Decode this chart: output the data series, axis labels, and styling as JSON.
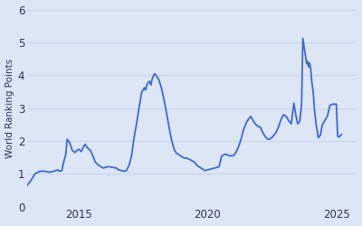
{
  "ylabel": "World Ranking Points",
  "background_color": "#dce6f5",
  "line_color": "#4169cc",
  "xlim": [
    2013.0,
    2025.8
  ],
  "ylim": [
    0,
    6
  ],
  "yticks": [
    0,
    1,
    2,
    3,
    4,
    5,
    6
  ],
  "xticks": [
    2015,
    2020,
    2025
  ],
  "grid_color": "#c8d4e8",
  "line_width": 1.3,
  "series": [
    [
      2013.0,
      0.65
    ],
    [
      2013.15,
      0.8
    ],
    [
      2013.3,
      1.0
    ],
    [
      2013.5,
      1.08
    ],
    [
      2013.7,
      1.08
    ],
    [
      2013.85,
      1.05
    ],
    [
      2014.0,
      1.07
    ],
    [
      2014.1,
      1.1
    ],
    [
      2014.2,
      1.12
    ],
    [
      2014.25,
      1.08
    ],
    [
      2014.35,
      1.1
    ],
    [
      2014.4,
      1.3
    ],
    [
      2014.5,
      1.6
    ],
    [
      2014.55,
      2.05
    ],
    [
      2014.65,
      1.95
    ],
    [
      2014.75,
      1.72
    ],
    [
      2014.85,
      1.65
    ],
    [
      2014.95,
      1.72
    ],
    [
      2015.0,
      1.75
    ],
    [
      2015.1,
      1.68
    ],
    [
      2015.2,
      1.85
    ],
    [
      2015.25,
      1.9
    ],
    [
      2015.35,
      1.78
    ],
    [
      2015.45,
      1.72
    ],
    [
      2015.55,
      1.55
    ],
    [
      2015.65,
      1.35
    ],
    [
      2015.75,
      1.28
    ],
    [
      2015.85,
      1.22
    ],
    [
      2015.95,
      1.18
    ],
    [
      2016.05,
      1.2
    ],
    [
      2016.15,
      1.22
    ],
    [
      2016.3,
      1.2
    ],
    [
      2016.45,
      1.18
    ],
    [
      2016.55,
      1.12
    ],
    [
      2016.65,
      1.1
    ],
    [
      2016.75,
      1.08
    ],
    [
      2016.85,
      1.1
    ],
    [
      2016.95,
      1.25
    ],
    [
      2017.05,
      1.55
    ],
    [
      2017.15,
      2.1
    ],
    [
      2017.25,
      2.55
    ],
    [
      2017.35,
      3.05
    ],
    [
      2017.45,
      3.5
    ],
    [
      2017.5,
      3.55
    ],
    [
      2017.55,
      3.62
    ],
    [
      2017.6,
      3.55
    ],
    [
      2017.65,
      3.72
    ],
    [
      2017.7,
      3.78
    ],
    [
      2017.75,
      3.82
    ],
    [
      2017.8,
      3.7
    ],
    [
      2017.85,
      3.88
    ],
    [
      2017.9,
      3.98
    ],
    [
      2017.95,
      4.05
    ],
    [
      2018.0,
      4.0
    ],
    [
      2018.1,
      3.88
    ],
    [
      2018.2,
      3.65
    ],
    [
      2018.3,
      3.3
    ],
    [
      2018.4,
      2.9
    ],
    [
      2018.5,
      2.45
    ],
    [
      2018.6,
      2.05
    ],
    [
      2018.7,
      1.75
    ],
    [
      2018.8,
      1.62
    ],
    [
      2018.9,
      1.58
    ],
    [
      2019.0,
      1.52
    ],
    [
      2019.1,
      1.48
    ],
    [
      2019.2,
      1.48
    ],
    [
      2019.3,
      1.44
    ],
    [
      2019.4,
      1.4
    ],
    [
      2019.5,
      1.35
    ],
    [
      2019.6,
      1.25
    ],
    [
      2019.7,
      1.2
    ],
    [
      2019.8,
      1.15
    ],
    [
      2019.9,
      1.1
    ],
    [
      2020.0,
      1.12
    ],
    [
      2020.15,
      1.15
    ],
    [
      2020.3,
      1.18
    ],
    [
      2020.45,
      1.22
    ],
    [
      2020.55,
      1.55
    ],
    [
      2020.7,
      1.6
    ],
    [
      2020.85,
      1.55
    ],
    [
      2021.0,
      1.55
    ],
    [
      2021.1,
      1.65
    ],
    [
      2021.2,
      1.82
    ],
    [
      2021.3,
      2.05
    ],
    [
      2021.4,
      2.35
    ],
    [
      2021.5,
      2.55
    ],
    [
      2021.6,
      2.68
    ],
    [
      2021.68,
      2.75
    ],
    [
      2021.75,
      2.65
    ],
    [
      2021.85,
      2.52
    ],
    [
      2021.95,
      2.45
    ],
    [
      2022.05,
      2.42
    ],
    [
      2022.15,
      2.25
    ],
    [
      2022.25,
      2.12
    ],
    [
      2022.35,
      2.05
    ],
    [
      2022.45,
      2.07
    ],
    [
      2022.55,
      2.15
    ],
    [
      2022.65,
      2.25
    ],
    [
      2022.75,
      2.42
    ],
    [
      2022.85,
      2.65
    ],
    [
      2022.95,
      2.8
    ],
    [
      2023.05,
      2.75
    ],
    [
      2023.15,
      2.62
    ],
    [
      2023.25,
      2.52
    ],
    [
      2023.35,
      3.15
    ],
    [
      2023.42,
      2.82
    ],
    [
      2023.5,
      2.52
    ],
    [
      2023.58,
      2.6
    ],
    [
      2023.65,
      3.12
    ],
    [
      2023.7,
      5.12
    ],
    [
      2023.75,
      4.85
    ],
    [
      2023.8,
      4.6
    ],
    [
      2023.85,
      4.35
    ],
    [
      2023.88,
      4.42
    ],
    [
      2023.92,
      4.25
    ],
    [
      2023.96,
      4.38
    ],
    [
      2024.0,
      4.22
    ],
    [
      2024.05,
      3.78
    ],
    [
      2024.1,
      3.5
    ],
    [
      2024.15,
      2.95
    ],
    [
      2024.22,
      2.48
    ],
    [
      2024.3,
      2.1
    ],
    [
      2024.38,
      2.18
    ],
    [
      2024.45,
      2.48
    ],
    [
      2024.55,
      2.62
    ],
    [
      2024.65,
      2.75
    ],
    [
      2024.75,
      3.08
    ],
    [
      2024.85,
      3.12
    ],
    [
      2025.0,
      3.12
    ],
    [
      2025.05,
      2.15
    ],
    [
      2025.1,
      2.12
    ],
    [
      2025.2,
      2.2
    ]
  ]
}
